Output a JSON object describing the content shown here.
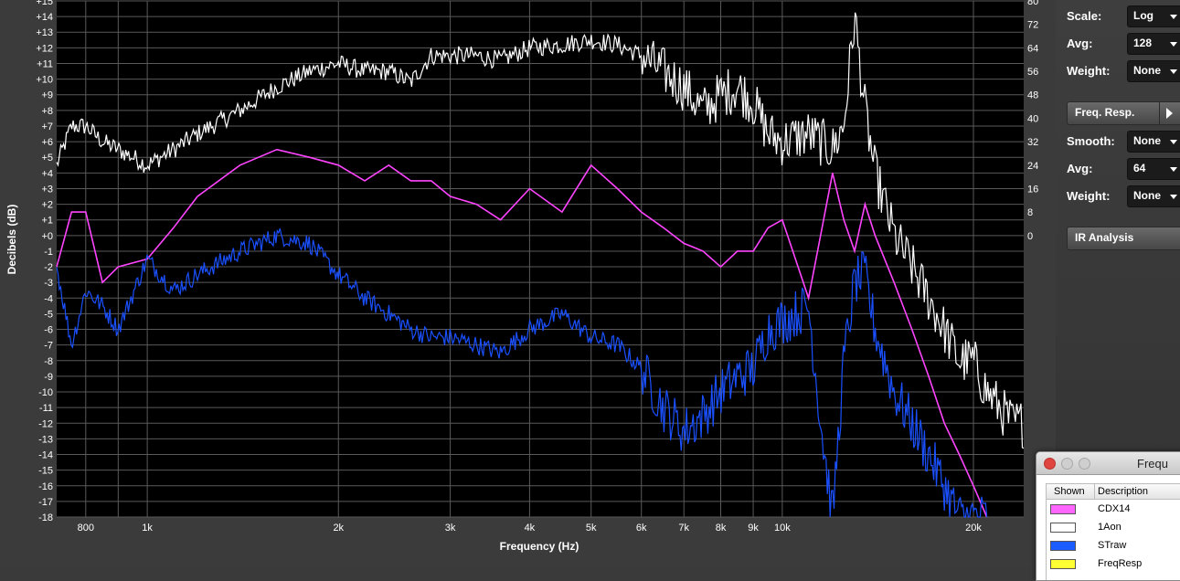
{
  "plot": {
    "y_axis_title": "Decibels (dB)",
    "x_axis_title": "Frequency (Hz)",
    "y_ticks": [
      "+15",
      "+14",
      "+13",
      "+12",
      "+11",
      "+10",
      "+9",
      "+8",
      "+7",
      "+6",
      "+5",
      "+4",
      "+3",
      "+2",
      "+1",
      "+0",
      "-1",
      "-2",
      "-3",
      "-4",
      "-5",
      "-6",
      "-7",
      "-8",
      "-9",
      "-10",
      "-11",
      "-12",
      "-13",
      "-14",
      "-15",
      "-16",
      "-17",
      "-18"
    ],
    "right_ticks": [
      "80",
      "72",
      "64",
      "56",
      "48",
      "40",
      "32",
      "24",
      "16",
      "8",
      "0"
    ],
    "x_ticks": [
      "800",
      "1k",
      "2k",
      "3k",
      "4k",
      "5k",
      "6k",
      "7k",
      "8k",
      "9k",
      "10k",
      "20k"
    ]
  },
  "chart_data": {
    "type": "line",
    "xlabel": "Frequency (Hz)",
    "ylabel": "Decibels (dB)",
    "x_scale": "log",
    "xlim": [
      720,
      24000
    ],
    "ylim": [
      -18,
      15
    ],
    "grid": true,
    "series": [
      {
        "name": "1Aon",
        "color": "#ffffff",
        "noisy": true,
        "x": [
          720,
          760,
          800,
          850,
          900,
          950,
          1000,
          1100,
          1200,
          1400,
          1600,
          1800,
          2000,
          2200,
          2400,
          2600,
          2800,
          3000,
          3300,
          3600,
          4000,
          4500,
          5000,
          5500,
          6000,
          6500,
          7000,
          7500,
          8000,
          8500,
          9000,
          9500,
          10000,
          11000,
          12000,
          12500,
          13000,
          13500,
          14000,
          15000,
          16000,
          17000,
          18000,
          19000,
          20000,
          21000,
          22000,
          23000,
          24000
        ],
        "y": [
          4.5,
          7,
          7,
          6,
          5.5,
          5,
          4.5,
          5.5,
          6.5,
          8,
          9.5,
          10.5,
          11,
          10.5,
          10.5,
          9.8,
          11.5,
          11.5,
          11.5,
          11.2,
          12,
          12.2,
          12.5,
          12.2,
          11.5,
          10.5,
          9.5,
          8,
          9,
          9.5,
          8.5,
          6.5,
          6,
          6.5,
          5.5,
          7,
          14,
          8,
          4,
          0,
          -2,
          -4,
          -6,
          -8,
          -8,
          -10,
          -11,
          -12,
          -12
        ]
      },
      {
        "name": "CDX14",
        "color": "#ff44ff",
        "noisy": false,
        "x": [
          720,
          760,
          800,
          850,
          900,
          1000,
          1100,
          1200,
          1400,
          1600,
          1800,
          2000,
          2200,
          2400,
          2600,
          2800,
          3000,
          3300,
          3600,
          4000,
          4500,
          5000,
          5500,
          6000,
          6500,
          7000,
          7500,
          8000,
          8500,
          9000,
          9500,
          10000,
          11000,
          12000,
          12500,
          13000,
          13500,
          14000,
          15000,
          16000,
          17000,
          18000,
          19000,
          20000,
          21000
        ],
        "y": [
          -2,
          1.5,
          1.5,
          -3,
          -2,
          -1.5,
          0.5,
          2.5,
          4.5,
          5.5,
          5,
          4.5,
          3.5,
          4.5,
          3.5,
          3.5,
          2.5,
          2,
          1,
          3,
          1.5,
          4.5,
          3,
          1.5,
          0.5,
          -0.5,
          -1,
          -2,
          -1,
          -1,
          0.5,
          1,
          -4,
          4,
          1,
          -1,
          2,
          0,
          -3,
          -6,
          -9,
          -12,
          -14,
          -16,
          -18
        ]
      },
      {
        "name": "STraw",
        "color": "#1a50ff",
        "noisy": true,
        "x": [
          720,
          760,
          800,
          850,
          900,
          1000,
          1100,
          1200,
          1400,
          1600,
          1800,
          2000,
          2200,
          2400,
          2600,
          2800,
          3000,
          3300,
          3600,
          4000,
          4500,
          5000,
          5500,
          6000,
          6500,
          7000,
          7500,
          8000,
          8500,
          9000,
          9500,
          10000,
          11000,
          11500,
          12000,
          12500,
          13000,
          13500,
          14000,
          15000,
          16000,
          17000,
          18000,
          19000,
          20000,
          21000
        ],
        "y": [
          -2,
          -7,
          -3.5,
          -4.5,
          -6,
          -1.5,
          -3.5,
          -2.5,
          -1,
          0,
          -0.5,
          -2.5,
          -4,
          -5,
          -6,
          -6.5,
          -6.5,
          -7,
          -7.5,
          -6,
          -5,
          -6.5,
          -7,
          -8.5,
          -11,
          -12.5,
          -11.5,
          -10,
          -9,
          -8.5,
          -6,
          -5.5,
          -4.5,
          -12,
          -18,
          -8,
          -3,
          -2.5,
          -6,
          -10,
          -12,
          -14,
          -16,
          -18,
          -18,
          -18
        ]
      },
      {
        "name": "FreqResp",
        "color": "#ffff33",
        "noisy": false,
        "x": [],
        "y": []
      }
    ]
  },
  "sidebar": {
    "rows_top": [
      {
        "label": "Scale:",
        "value": "Log"
      },
      {
        "label": "Avg:",
        "value": "128"
      },
      {
        "label": "Weight:",
        "value": "None"
      }
    ],
    "freq_resp_button": "Freq. Resp.",
    "rows_mid": [
      {
        "label": "Smooth:",
        "value": "None"
      },
      {
        "label": "Avg:",
        "value": "64"
      },
      {
        "label": "Weight:",
        "value": "None"
      }
    ],
    "ir_button": "IR Analysis"
  },
  "legend": {
    "title": "Frequ",
    "col_shown": "Shown",
    "col_desc": "Description",
    "items": [
      {
        "name": "CDX14",
        "color": "#ff66ff"
      },
      {
        "name": "1Aon",
        "color": "#ffffff"
      },
      {
        "name": "STraw",
        "color": "#1a5cff"
      },
      {
        "name": "FreqResp",
        "color": "#ffff33"
      }
    ]
  }
}
